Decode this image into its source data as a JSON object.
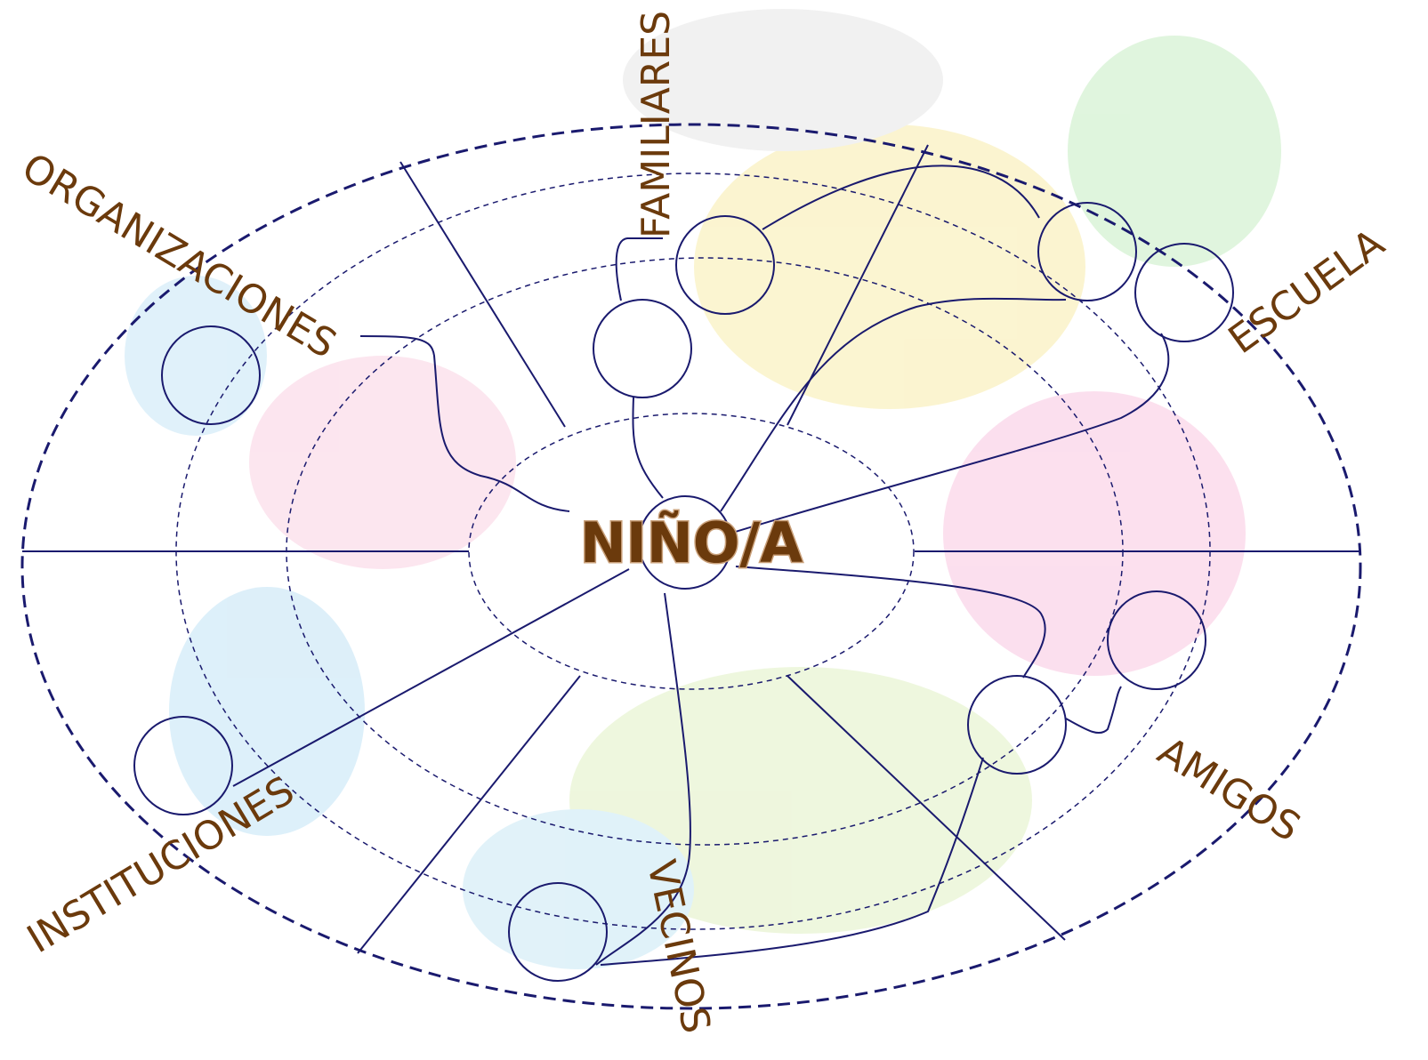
{
  "center": {
    "label": "NIÑO/A"
  },
  "labels": {
    "familiares": "FAMILIARES",
    "organizaciones": "ORGANIZACIONES",
    "escuela": "ESCUELA",
    "amigos": "AMIGOS",
    "vecinos": "VECINOS",
    "instituciones": "INSTITUCIONES"
  }
}
